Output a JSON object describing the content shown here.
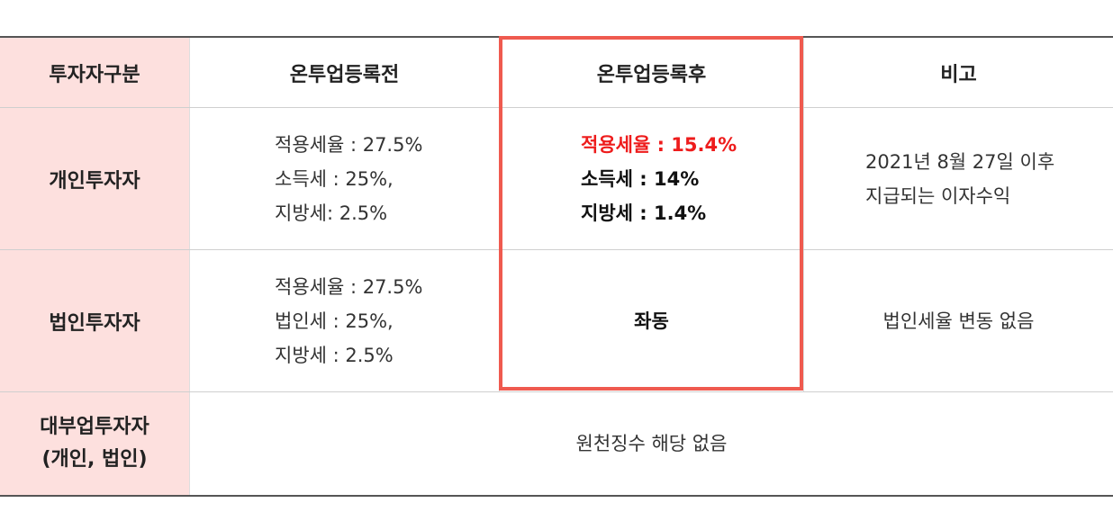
{
  "header": {
    "col1": "투자자구분",
    "col2": "온투업등록전",
    "col3": "온투업등록후",
    "col4": "비고"
  },
  "rows": [
    {
      "label": "개인투자자",
      "before": [
        "적용세율 : 27.5%",
        "소득세 : 25%,",
        "지방세: 2.5%"
      ],
      "after": [
        "적용세율 : 15.4%",
        "소득세 : 14%",
        "지방세 : 1.4%"
      ],
      "note": [
        "2021년 8월 27일 이후",
        "지급되는 이자수익"
      ]
    },
    {
      "label": "법인투자자",
      "before": [
        "적용세율 : 27.5%",
        "법인세 : 25%,",
        "지방세 : 2.5%"
      ],
      "after": "좌동",
      "note": "법인세율 변동 없음"
    },
    {
      "label_lines": [
        "대부업투자자",
        "(개인, 법인)"
      ],
      "merged": "원천징수 해당 없음"
    }
  ],
  "colors": {
    "label_bg": "#fde0de",
    "highlight_border": "#ef5a4f",
    "highlight_text": "#ee1c1c"
  }
}
